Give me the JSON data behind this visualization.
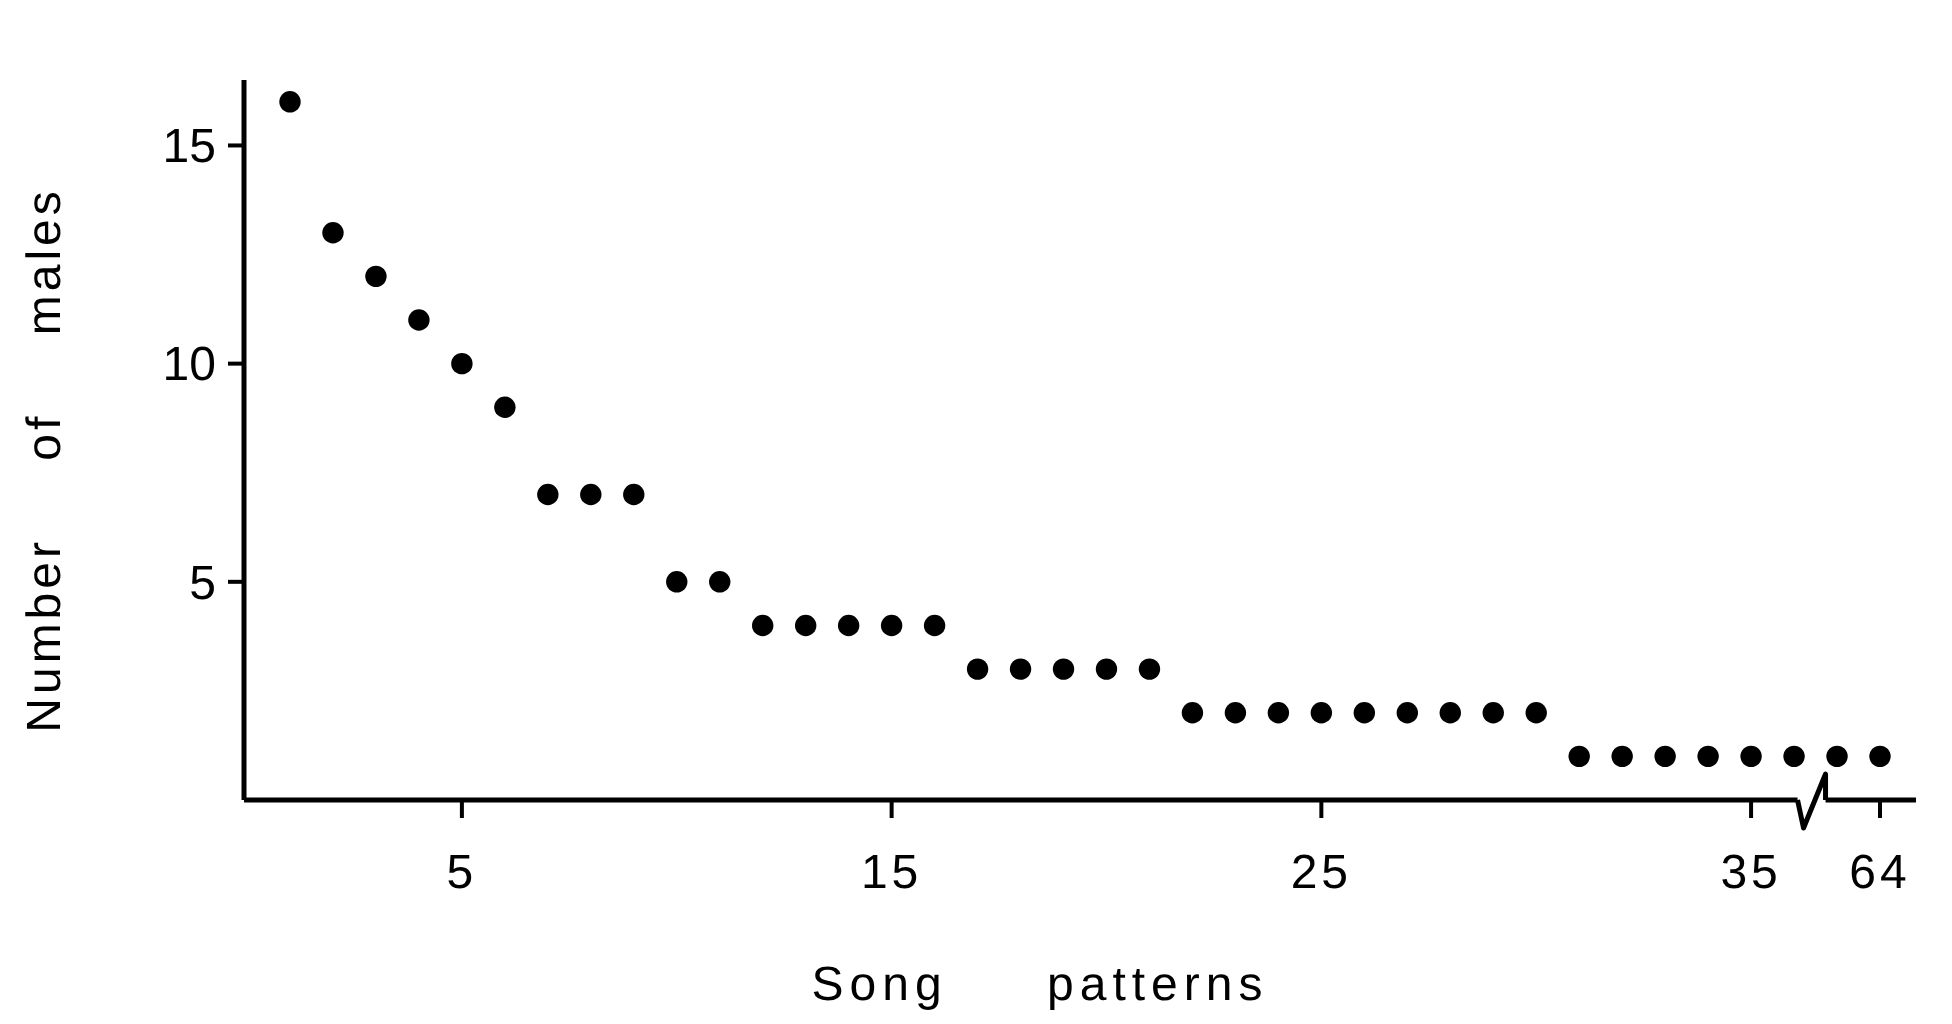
{
  "chart_data": {
    "type": "scatter",
    "xlabel": "Song patterns",
    "ylabel": "Number of males",
    "categories": [
      null,
      null,
      null,
      null,
      "5",
      null,
      null,
      null,
      null,
      null,
      null,
      null,
      null,
      null,
      "15",
      null,
      null,
      null,
      null,
      null,
      null,
      null,
      null,
      null,
      "25",
      null,
      null,
      null,
      null,
      null,
      null,
      null,
      null,
      null,
      "35",
      null,
      null,
      "64"
    ],
    "values": [
      16,
      13,
      12,
      11,
      10,
      9,
      7,
      7,
      7,
      5,
      5,
      4,
      4,
      4,
      4,
      4,
      3,
      3,
      3,
      3,
      3,
      2,
      2,
      2,
      2,
      2,
      2,
      2,
      2,
      2,
      1,
      1,
      1,
      1,
      1,
      1,
      1,
      1
    ],
    "color": "#000000",
    "marker": "circle",
    "ylim": [
      0,
      16.5
    ],
    "yticks": [
      5,
      10,
      15
    ],
    "grid": false
  }
}
